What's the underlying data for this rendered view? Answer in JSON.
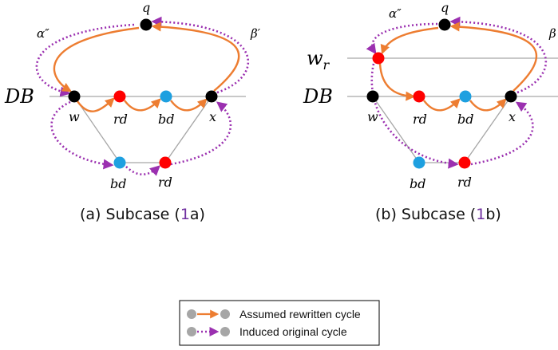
{
  "colors": {
    "black_node": "#000000",
    "red_node": "#ff0000",
    "blue_node": "#1ea0e0",
    "assumed": "#ed7d31",
    "induced": "#9b30b0",
    "line": "#a6a6a6",
    "caption_ref": "#7030a0",
    "legend_node": "#a6a6a6"
  },
  "panel_a": {
    "db_label": "DB",
    "labels": {
      "q": "q",
      "w": "w",
      "x": "x",
      "rd_top": "rd",
      "bd_top": "bd",
      "bd_bottom": "bd",
      "rd_bottom": "rd",
      "alpha": "α″",
      "beta": "β′"
    },
    "caption": {
      "prefix": "(a) Subcase (",
      "ref": "1",
      "suffix": "a)"
    }
  },
  "panel_b": {
    "db_label": "DB",
    "wr_main": "w",
    "wr_sub": "r",
    "labels": {
      "q": "q",
      "w": "w",
      "x": "x",
      "rd_top": "rd",
      "bd_top": "bd",
      "bd_bottom": "bd",
      "rd_bottom": "rd",
      "alpha": "α″",
      "beta": "β"
    },
    "caption": {
      "prefix": "(b) Subcase (",
      "ref": "1",
      "suffix": "b)"
    }
  },
  "legend": {
    "assumed": "Assumed rewritten cycle",
    "induced": "Induced original cycle"
  }
}
